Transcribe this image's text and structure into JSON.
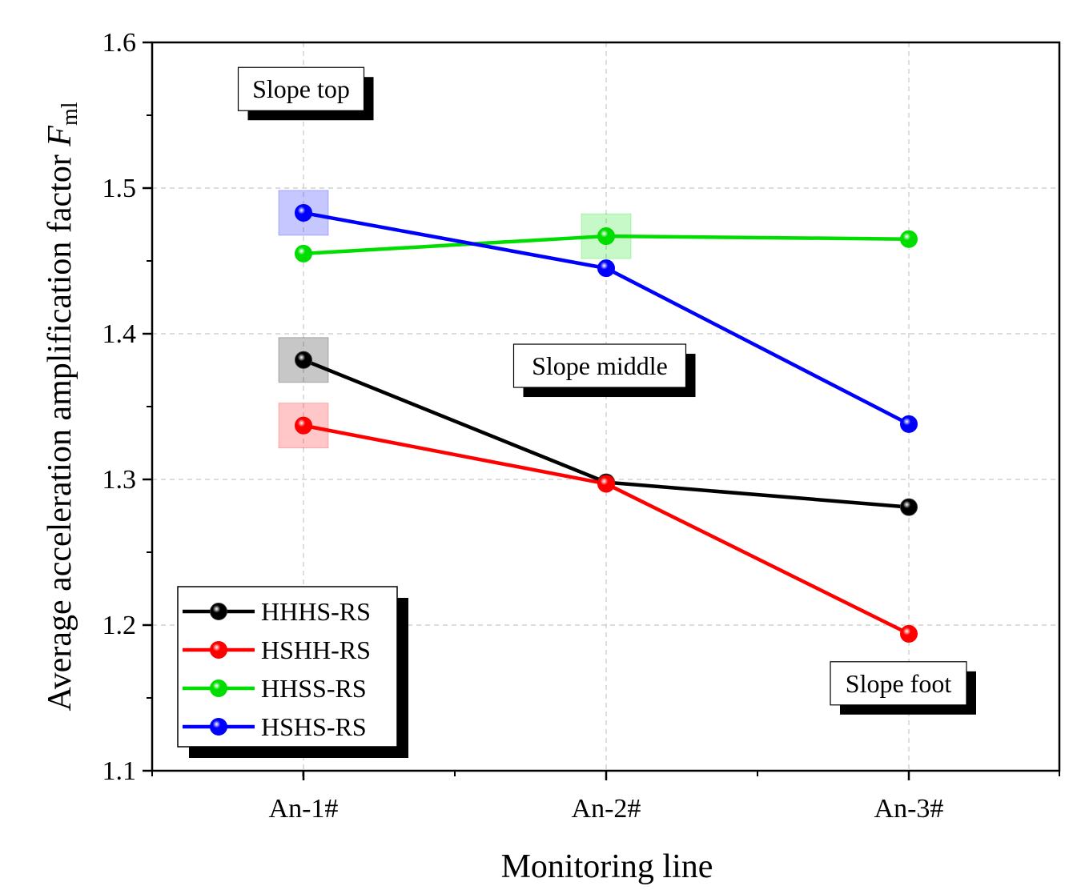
{
  "chart_data": {
    "type": "line",
    "title": "",
    "xlabel": "Monitoring line",
    "ylabel_prefix": "Average acceleration amplification factor ",
    "ylabel_symbol": "F",
    "ylabel_subscript": "ml",
    "categories": [
      "An-1#",
      "An-2#",
      "An-3#"
    ],
    "ylim": [
      1.1,
      1.6
    ],
    "yticks": [
      1.1,
      1.2,
      1.3,
      1.4,
      1.5,
      1.6
    ],
    "ytick_labels": [
      "1.1",
      "1.2",
      "1.3",
      "1.4",
      "1.5",
      "1.6"
    ],
    "grid": true,
    "legend_position": "bottom-left",
    "series": [
      {
        "name": "HHHS-RS",
        "color": "#000000",
        "values": [
          1.382,
          1.298,
          1.281
        ],
        "highlight_index": 0
      },
      {
        "name": "HSHH-RS",
        "color": "#ff0000",
        "values": [
          1.337,
          1.297,
          1.194
        ],
        "highlight_index": 0
      },
      {
        "name": "HHSS-RS",
        "color": "#00dd00",
        "values": [
          1.455,
          1.467,
          1.465
        ],
        "highlight_index": 1
      },
      {
        "name": "HSHS-RS",
        "color": "#0000ff",
        "values": [
          1.483,
          1.445,
          1.338
        ],
        "highlight_index": 0
      }
    ],
    "annotations": [
      {
        "text": "Slope top",
        "category_index": 0,
        "y": 1.568
      },
      {
        "text": "Slope middle",
        "category_index": 1,
        "y": 1.378
      },
      {
        "text": "Slope foot",
        "category_index": 2,
        "y": 1.16
      }
    ]
  }
}
